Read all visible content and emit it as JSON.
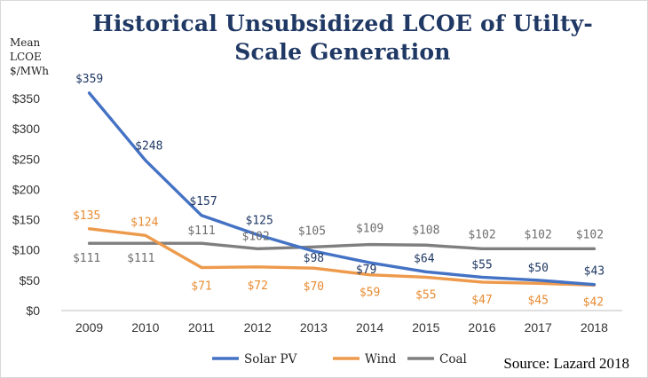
{
  "chart_data": {
    "type": "line",
    "title": "Historical Unsubsidized LCOE of Utilty-Scale Generation",
    "ylabel": "Mean\nLCOE\n$/MWh",
    "xlabel": "",
    "categories": [
      "2009",
      "2010",
      "2011",
      "2012",
      "2013",
      "2014",
      "2015",
      "2016",
      "2017",
      "2018"
    ],
    "ylim": [
      0,
      350
    ],
    "yticks": [
      0,
      50,
      100,
      150,
      200,
      250,
      300,
      350
    ],
    "ytick_labels": [
      "$0",
      "$50",
      "$100",
      "$150",
      "$200",
      "$250",
      "$300",
      "$350"
    ],
    "grid": false,
    "legend_position": "bottom",
    "series": [
      {
        "name": "Solar PV",
        "color": "#4472c4",
        "label_color": "#1f3864",
        "values": [
          359,
          248,
          157,
          125,
          98,
          79,
          64,
          55,
          50,
          43
        ],
        "labels": [
          "$359",
          "$248",
          "$157",
          "$125",
          "$98",
          "$79",
          "$64",
          "$55",
          "$50",
          "$43"
        ]
      },
      {
        "name": "Wind",
        "color": "#ed9a4c",
        "label_color": "#e88b32",
        "values": [
          135,
          124,
          71,
          72,
          70,
          59,
          55,
          47,
          45,
          42
        ],
        "labels": [
          "$135",
          "$124",
          "$71",
          "$72",
          "$70",
          "$59",
          "$55",
          "$47",
          "$45",
          "$42"
        ]
      },
      {
        "name": "Coal",
        "color": "#7f7f7f",
        "label_color": "#6e6e6e",
        "values": [
          111,
          111,
          111,
          102,
          105,
          109,
          108,
          102,
          102,
          102
        ],
        "labels": [
          "$111",
          "$111",
          "$111",
          "$102",
          "$105",
          "$109",
          "$108",
          "$102",
          "$102",
          "$102"
        ]
      }
    ],
    "annotation": "Source: Lazard 2018"
  }
}
